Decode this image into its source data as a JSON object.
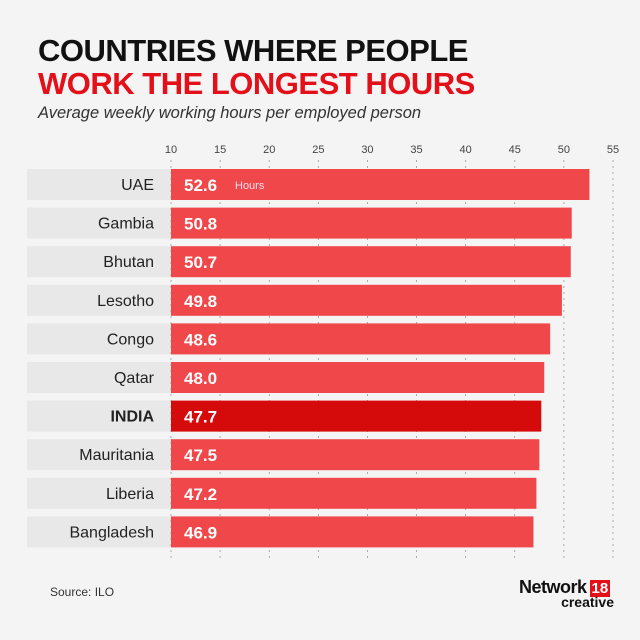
{
  "chart_data": {
    "type": "bar",
    "orientation": "horizontal",
    "title_line1": "COUNTRIES WHERE PEOPLE",
    "title_line2": "WORK THE LONGEST HOURS",
    "subtitle": "Average weekly working hours per employed person",
    "categories": [
      "UAE",
      "Gambia",
      "Bhutan",
      "Lesotho",
      "Congo",
      "Qatar",
      "INDIA",
      "Mauritania",
      "Liberia",
      "Bangladesh"
    ],
    "values": [
      52.6,
      50.8,
      50.7,
      49.8,
      48.6,
      48.0,
      47.7,
      47.5,
      47.2,
      46.9
    ],
    "value_labels": [
      "52.6",
      "50.8",
      "50.7",
      "49.8",
      "48.6",
      "48.0",
      "47.7",
      "47.5",
      "47.2",
      "46.9"
    ],
    "unit_label": "Hours",
    "highlight": "INDIA",
    "xlim": [
      10,
      55
    ],
    "xticks": [
      10,
      15,
      20,
      25,
      30,
      35,
      40,
      45,
      50,
      55
    ],
    "grid": "dashed vertical",
    "colors": {
      "bar": "#f0484a",
      "highlight": "#d50a0a",
      "band": "#e8e8e8"
    }
  },
  "footer": {
    "source": "Source: ILO",
    "logo_word": "Network",
    "logo_num": "18",
    "logo_sub": "creative"
  }
}
